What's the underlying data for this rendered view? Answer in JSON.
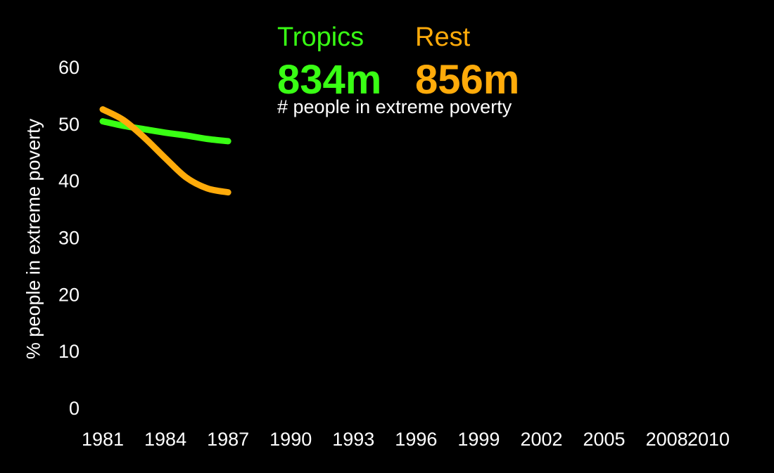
{
  "chart_data": {
    "type": "line",
    "ylabel": "% people in extreme poverty",
    "ylim": [
      0,
      60
    ],
    "yticks": [
      0,
      10,
      20,
      30,
      40,
      50,
      60
    ],
    "xlim": [
      1981,
      2010
    ],
    "xticks": [
      1981,
      1984,
      1987,
      1990,
      1993,
      1996,
      1999,
      2002,
      2005,
      2008,
      2010
    ],
    "legend_placement": "top-center",
    "subtitle": "# people in extreme poverty",
    "grid": false,
    "series": [
      {
        "name": "Tropics",
        "color": "#39ff14",
        "headline": "834m",
        "x": [
          1981,
          1982,
          1983,
          1984,
          1985,
          1986,
          1987
        ],
        "y": [
          50.4,
          49.6,
          49.0,
          48.4,
          47.9,
          47.3,
          46.9
        ]
      },
      {
        "name": "Rest",
        "color": "#ffab0a",
        "headline": "856m",
        "x": [
          1981,
          1982,
          1983,
          1984,
          1985,
          1986,
          1987
        ],
        "y": [
          52.5,
          50.6,
          47.5,
          43.9,
          40.5,
          38.6,
          37.9
        ]
      }
    ]
  }
}
